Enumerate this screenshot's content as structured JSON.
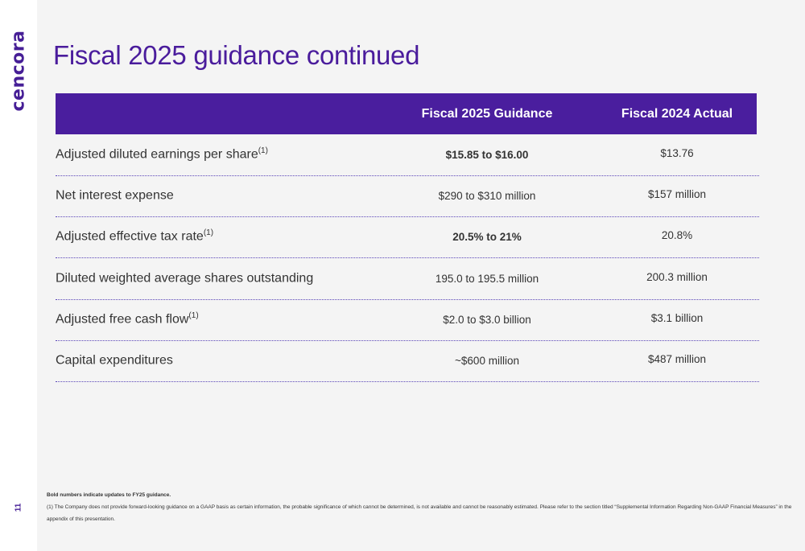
{
  "brand": {
    "logo_text": "cencora",
    "page_number": "11"
  },
  "title": "Fiscal 2025 guidance continued",
  "table": {
    "headers": {
      "label": "",
      "guidance": "Fiscal 2025 Guidance",
      "actual": "Fiscal 2024 Actual"
    },
    "rows": [
      {
        "label": "Adjusted diluted earnings per share",
        "footnote": "(1)",
        "guidance": "$15.85 to $16.00",
        "guidance_bold": true,
        "actual": "$13.76"
      },
      {
        "label": "Net interest expense",
        "footnote": "",
        "guidance": "$290 to $310 million",
        "guidance_bold": false,
        "actual": "$157 million"
      },
      {
        "label": "Adjusted effective tax rate",
        "footnote": "(1)",
        "guidance": "20.5% to 21%",
        "guidance_bold": true,
        "actual": "20.8%"
      },
      {
        "label": "Diluted weighted average shares outstanding",
        "footnote": "",
        "guidance": "195.0 to 195.5 million",
        "guidance_bold": false,
        "actual": "200.3 million"
      },
      {
        "label": "Adjusted free cash flow",
        "footnote": "(1)",
        "guidance": "$2.0 to $3.0 billion",
        "guidance_bold": false,
        "actual": "$3.1 billion"
      },
      {
        "label": "Capital expenditures",
        "footnote": "",
        "guidance": "~$600 million",
        "guidance_bold": false,
        "actual": "$487 million"
      }
    ]
  },
  "footnotes": {
    "bold_note": "Bold numbers indicate updates to FY25 guidance.",
    "note_1": "(1)  The Company does not provide forward-looking guidance on a GAAP basis as certain information, the probable significance of which cannot be determined, is not available and cannot be reasonably estimated. Please refer to the section titled “Supplemental Information Regarding Non-GAAP Financial Measures” in the appendix of this presentation."
  },
  "colors": {
    "brand_purple": "#4a1e9e",
    "background": "#f4f4f4"
  }
}
